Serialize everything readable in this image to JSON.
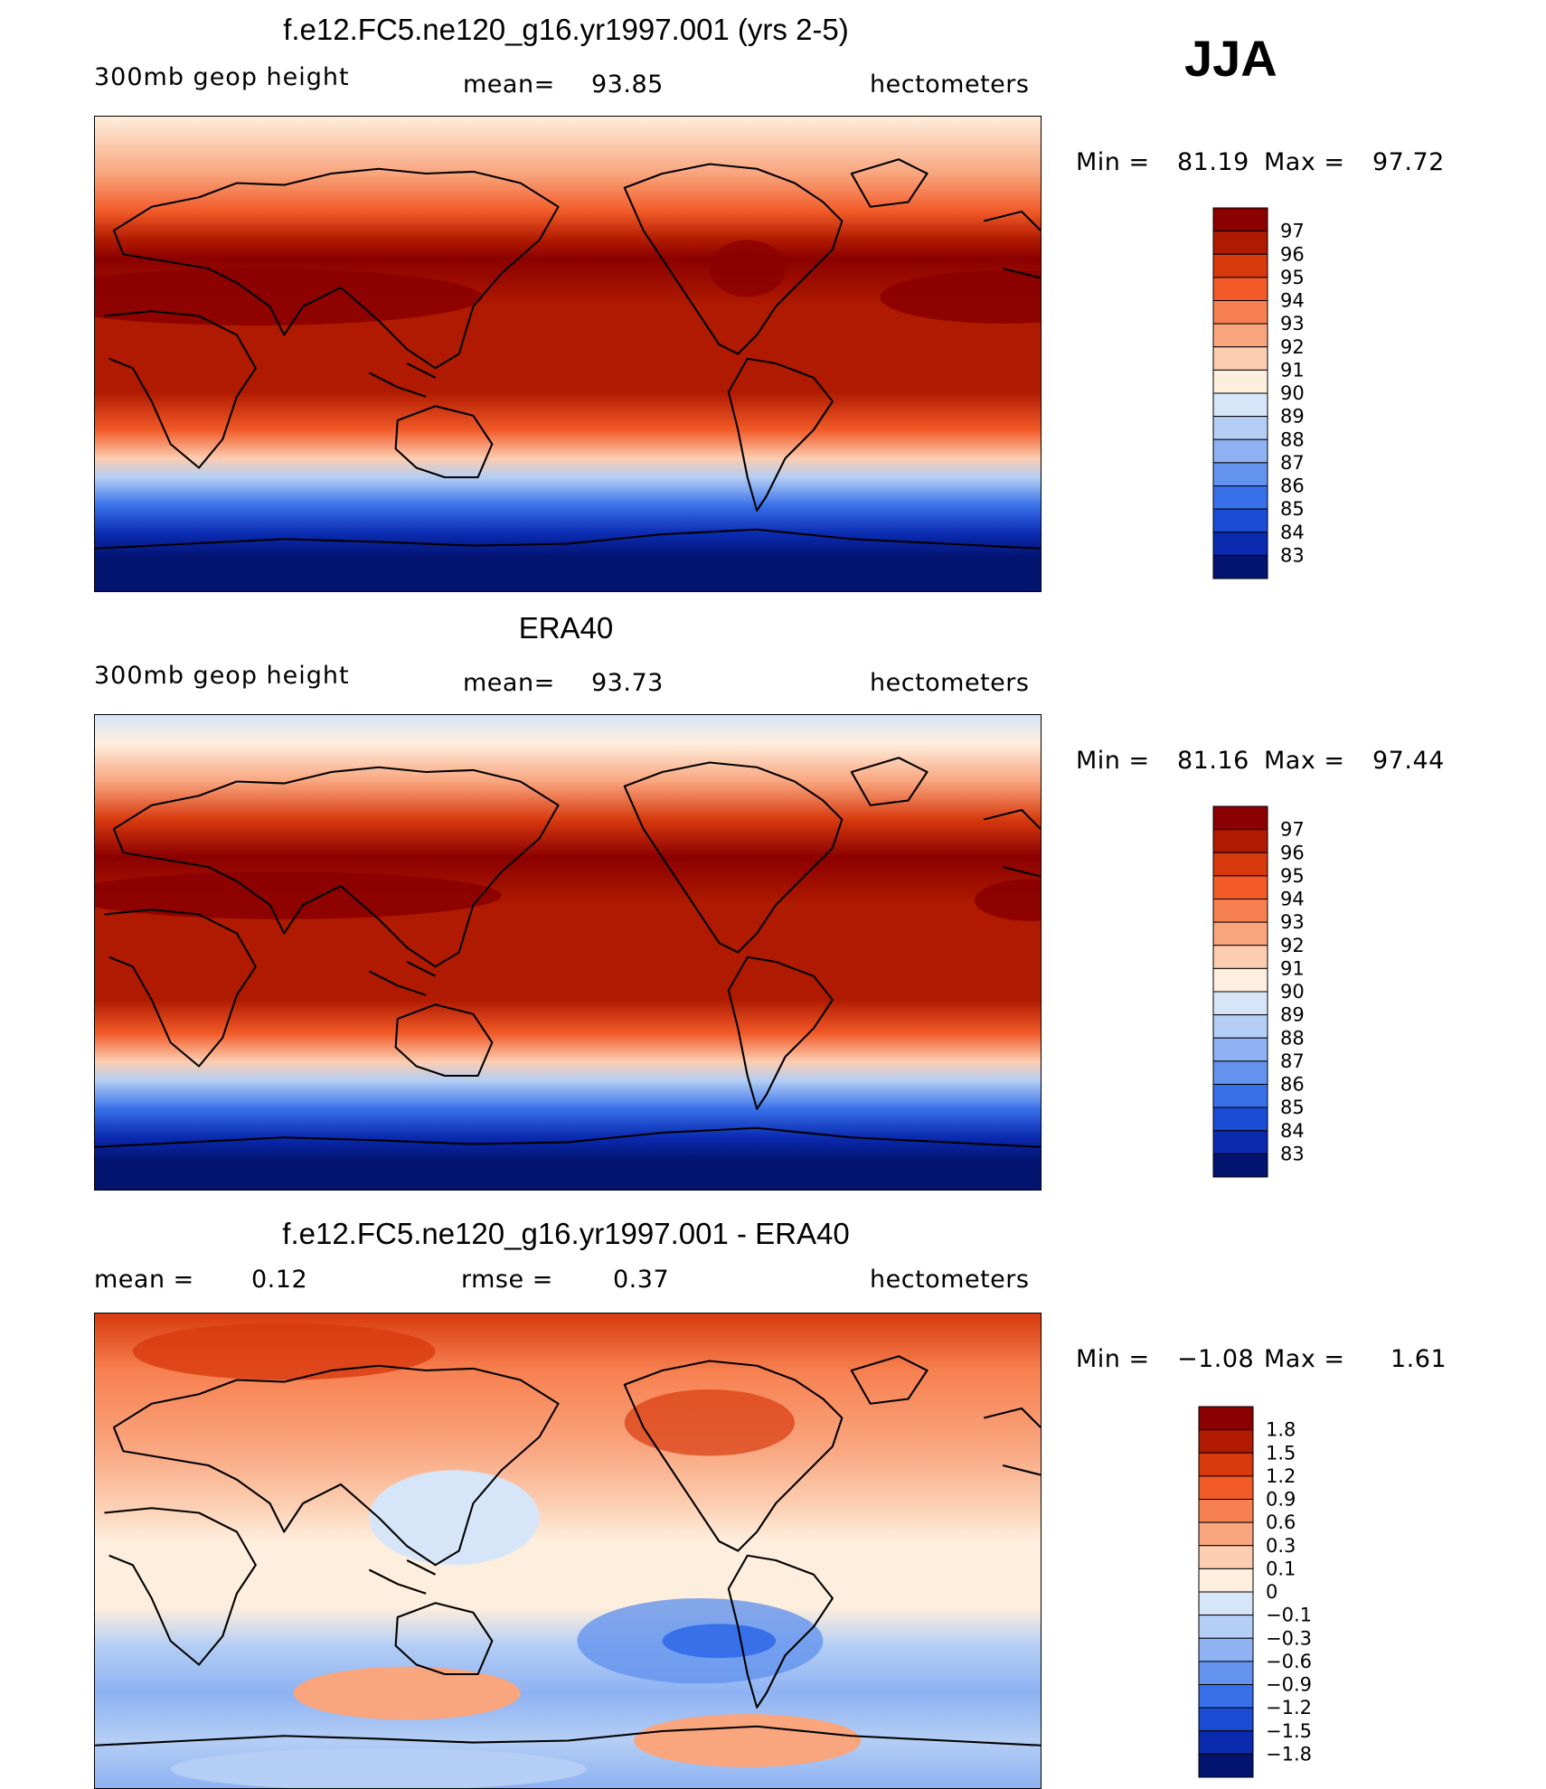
{
  "season": "JJA",
  "panels": [
    {
      "id": "model",
      "title": "f.e12.FC5.ne120_g16.yr1997.001 (yrs 2-5)",
      "variable": "300mb geop height",
      "stat_label": "mean=",
      "stat_value": "93.85",
      "units": "hectometers",
      "min_label": "Min =",
      "min_value": "81.19",
      "max_label": "Max =",
      "max_value": "97.72",
      "colorbar": {
        "labels": [
          "97",
          "96",
          "95",
          "94",
          "93",
          "92",
          "91",
          "90",
          "89",
          "88",
          "87",
          "86",
          "85",
          "84",
          "83"
        ],
        "colors": [
          "#8B0000",
          "#B01A00",
          "#D83A0E",
          "#F25A28",
          "#F78050",
          "#F9A57E",
          "#FCCDB0",
          "#FEEEDD",
          "#D6E6F8",
          "#B4CEF5",
          "#8EB2F3",
          "#6493EE",
          "#3870EA",
          "#1A4CD6",
          "#0A2AB0",
          "#031370"
        ]
      }
    },
    {
      "id": "obs",
      "title": "ERA40",
      "variable": "300mb geop height",
      "stat_label": "mean=",
      "stat_value": "93.73",
      "units": "hectometers",
      "min_label": "Min =",
      "min_value": "81.16",
      "max_label": "Max =",
      "max_value": "97.44",
      "colorbar": {
        "labels": [
          "97",
          "96",
          "95",
          "94",
          "93",
          "92",
          "91",
          "90",
          "89",
          "88",
          "87",
          "86",
          "85",
          "84",
          "83"
        ],
        "colors": [
          "#8B0000",
          "#B01A00",
          "#D83A0E",
          "#F25A28",
          "#F78050",
          "#F9A57E",
          "#FCCDB0",
          "#FEEEDD",
          "#D6E6F8",
          "#B4CEF5",
          "#8EB2F3",
          "#6493EE",
          "#3870EA",
          "#1A4CD6",
          "#0A2AB0",
          "#031370"
        ]
      }
    },
    {
      "id": "diff",
      "title": "f.e12.FC5.ne120_g16.yr1997.001 - ERA40",
      "stat_label": "mean =",
      "stat_value": "0.12",
      "stat2_label": "rmse =",
      "stat2_value": "0.37",
      "units": "hectometers",
      "min_label": "Min =",
      "min_value": "−1.08",
      "max_label": "Max =",
      "max_value": "1.61",
      "colorbar": {
        "labels": [
          "1.8",
          "1.5",
          "1.2",
          "0.9",
          "0.6",
          "0.3",
          "0.1",
          "0",
          "−0.1",
          "−0.3",
          "−0.6",
          "−0.9",
          "−1.2",
          "−1.5",
          "−1.8"
        ],
        "colors": [
          "#8B0000",
          "#B01A00",
          "#D83A0E",
          "#F25A28",
          "#F78050",
          "#F9A57E",
          "#FCCDB0",
          "#FEEEDD",
          "#D6E6F8",
          "#B4CEF5",
          "#8EB2F3",
          "#6493EE",
          "#3870EA",
          "#1A4CD6",
          "#0A2AB0",
          "#031370"
        ]
      }
    }
  ]
}
